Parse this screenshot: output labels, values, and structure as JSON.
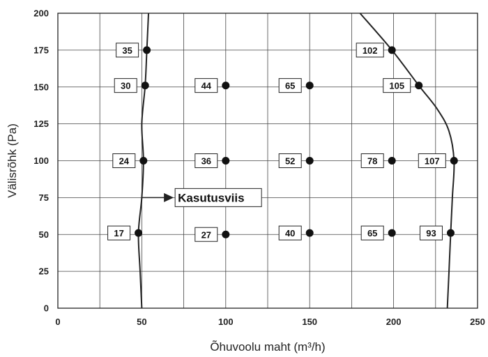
{
  "chart_data": {
    "type": "scatter",
    "title": "",
    "xlabel": "Õhuvoolu maht (m³/h)",
    "ylabel": "Välisrõhk (Pa)",
    "xlim": [
      0,
      250
    ],
    "ylim": [
      0,
      200
    ],
    "x_ticks": [
      "0",
      "50",
      "100",
      "150",
      "200",
      "250"
    ],
    "y_ticks": [
      "0",
      "25",
      "50",
      "75",
      "100",
      "125",
      "150",
      "175",
      "200"
    ],
    "x_grid_step": 25,
    "y_grid_step": 25,
    "grid": true,
    "points": [
      {
        "x": 53,
        "y": 175,
        "label": "35"
      },
      {
        "x": 199,
        "y": 175,
        "label": "102"
      },
      {
        "x": 52,
        "y": 151,
        "label": "30"
      },
      {
        "x": 100,
        "y": 151,
        "label": "44"
      },
      {
        "x": 150,
        "y": 151,
        "label": "65"
      },
      {
        "x": 215,
        "y": 151,
        "label": "105"
      },
      {
        "x": 51,
        "y": 100,
        "label": "24"
      },
      {
        "x": 100,
        "y": 100,
        "label": "36"
      },
      {
        "x": 150,
        "y": 100,
        "label": "52"
      },
      {
        "x": 199,
        "y": 100,
        "label": "78"
      },
      {
        "x": 236,
        "y": 100,
        "label": "107"
      },
      {
        "x": 48,
        "y": 51,
        "label": "17"
      },
      {
        "x": 100,
        "y": 50,
        "label": "27"
      },
      {
        "x": 150,
        "y": 51,
        "label": "40"
      },
      {
        "x": 199,
        "y": 51,
        "label": "65"
      },
      {
        "x": 234,
        "y": 51,
        "label": "93"
      }
    ],
    "curves": [
      {
        "points": [
          [
            50,
            0
          ],
          [
            49,
            25
          ],
          [
            48,
            51
          ],
          [
            50,
            75
          ],
          [
            51,
            100
          ],
          [
            50,
            125
          ],
          [
            52,
            151
          ],
          [
            53,
            175
          ],
          [
            54,
            200
          ]
        ]
      },
      {
        "points": [
          [
            180,
            200
          ],
          [
            199,
            175
          ],
          [
            215,
            151
          ],
          [
            226,
            135
          ],
          [
            233,
            120
          ],
          [
            236,
            100
          ],
          [
            235,
            75
          ],
          [
            234,
            51
          ],
          [
            233,
            25
          ],
          [
            232,
            0
          ]
        ]
      }
    ],
    "annotation": {
      "text": "Kasutusviis",
      "from": [
        50,
        75
      ],
      "to": [
        69,
        75
      ]
    }
  }
}
